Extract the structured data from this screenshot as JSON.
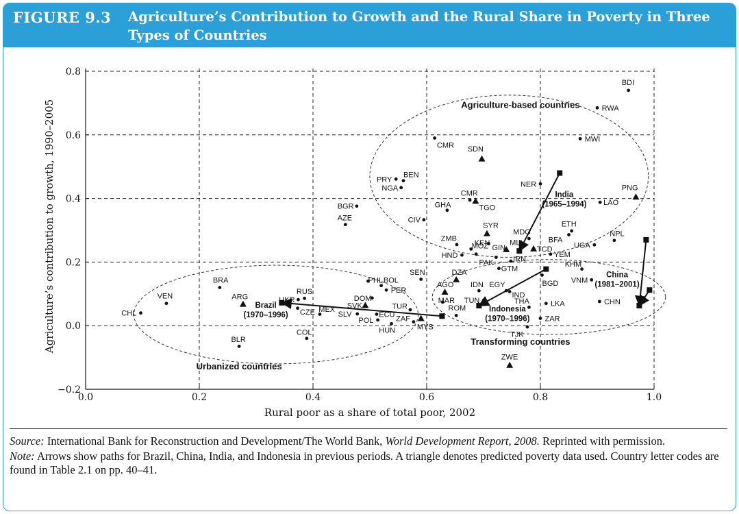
{
  "figure": {
    "number": "FIGURE 9.3",
    "title": "Agriculture’s Contribution to Growth and the Rural Share in Poverty in Three Types of Countries"
  },
  "colors": {
    "header": "#2b9fd8",
    "text": "#111111",
    "grid": "#222222"
  },
  "caption": {
    "source_lead": "Source:",
    "source_text": " International Bank for Reconstruction and Development/The World Bank, ",
    "source_italic": "World Development Report, 2008.",
    "source_tail": " Reprinted with permission.",
    "note_lead": "Note:",
    "note_text": " Arrows show paths for Brazil, China, India, and Indonesia in previous periods. A triangle denotes predicted poverty data used. Country letter codes are found in Table 2.1 on pp. 40–41."
  },
  "chart_data": {
    "type": "scatter",
    "xlabel": "Rural poor as a share of total poor, 2002",
    "ylabel": "Agriculture’s contribution to growth, 1990–2005",
    "xlim": [
      0.0,
      1.0
    ],
    "ylim": [
      -0.2,
      0.8
    ],
    "xticks": [
      0.0,
      0.2,
      0.4,
      0.6,
      0.8,
      1.0
    ],
    "xtick_labels": [
      "0.0",
      "0.2",
      "0.4",
      "0.6",
      "0.8",
      "1.0"
    ],
    "yticks": [
      -0.2,
      0.0,
      0.2,
      0.4,
      0.6,
      0.8
    ],
    "ytick_labels": [
      "−0.2",
      "0.0",
      "0.2",
      "0.4",
      "0.6",
      "0.8"
    ],
    "grid": "dashed",
    "points": [
      {
        "label": "BDI",
        "x": 0.955,
        "y": 0.74,
        "marker": "dot",
        "lx": -0.012,
        "ly": 0.025
      },
      {
        "label": "RWA",
        "x": 0.9,
        "y": 0.685,
        "marker": "dot",
        "lx": 0.008,
        "ly": 0.0
      },
      {
        "label": "MWI",
        "x": 0.87,
        "y": 0.588,
        "marker": "dot",
        "lx": 0.008,
        "ly": 0.0
      },
      {
        "label": "CMR",
        "x": 0.614,
        "y": 0.59,
        "marker": "dot",
        "lx": 0.004,
        "ly": -0.022
      },
      {
        "label": "SDN",
        "x": 0.697,
        "y": 0.525,
        "marker": "triangle",
        "lx": -0.025,
        "ly": 0.032
      },
      {
        "label": "BEN",
        "x": 0.559,
        "y": 0.456,
        "marker": "dot",
        "lx": 0.0,
        "ly": 0.02
      },
      {
        "label": "PRY",
        "x": 0.546,
        "y": 0.461,
        "marker": "dot",
        "lx": -0.034,
        "ly": 0.0
      },
      {
        "label": "NGA",
        "x": 0.555,
        "y": 0.434,
        "marker": "dot",
        "lx": -0.034,
        "ly": 0.0
      },
      {
        "label": "NER",
        "x": 0.8,
        "y": 0.446,
        "marker": "dot",
        "lx": -0.035,
        "ly": 0.0
      },
      {
        "label": "PNG",
        "x": 0.968,
        "y": 0.405,
        "marker": "triangle",
        "lx": -0.025,
        "ly": 0.03
      },
      {
        "label": "CMR",
        "x": 0.676,
        "y": 0.395,
        "marker": "dot",
        "lx": -0.016,
        "ly": 0.022
      },
      {
        "label": "TGO",
        "x": 0.686,
        "y": 0.392,
        "marker": "triangle",
        "lx": 0.006,
        "ly": -0.02
      },
      {
        "label": "GHA",
        "x": 0.636,
        "y": 0.363,
        "marker": "dot",
        "lx": -0.022,
        "ly": 0.018
      },
      {
        "label": "LAO",
        "x": 0.905,
        "y": 0.388,
        "marker": "dot",
        "lx": 0.006,
        "ly": 0.0
      },
      {
        "label": "BGR",
        "x": 0.477,
        "y": 0.376,
        "marker": "dot",
        "lx": -0.034,
        "ly": 0.0
      },
      {
        "label": "AZE",
        "x": 0.457,
        "y": 0.318,
        "marker": "dot",
        "lx": -0.014,
        "ly": 0.022
      },
      {
        "label": "CIV",
        "x": 0.595,
        "y": 0.333,
        "marker": "dot",
        "lx": -0.028,
        "ly": 0.0
      },
      {
        "label": "SYR",
        "x": 0.706,
        "y": 0.29,
        "marker": "triangle",
        "lx": -0.007,
        "ly": 0.026
      },
      {
        "label": "ETH",
        "x": 0.855,
        "y": 0.298,
        "marker": "dot",
        "lx": -0.018,
        "ly": 0.022
      },
      {
        "label": "MDG",
        "x": 0.78,
        "y": 0.274,
        "marker": "dot",
        "lx": -0.028,
        "ly": 0.022
      },
      {
        "label": "BFA",
        "x": 0.85,
        "y": 0.286,
        "marker": "dot",
        "lx": -0.036,
        "ly": -0.015
      },
      {
        "label": "NPL",
        "x": 0.93,
        "y": 0.268,
        "marker": "dot",
        "lx": -0.008,
        "ly": 0.022
      },
      {
        "label": "ZMB",
        "x": 0.653,
        "y": 0.255,
        "marker": "dot",
        "lx": -0.028,
        "ly": 0.02
      },
      {
        "label": "KEN",
        "x": 0.678,
        "y": 0.241,
        "marker": "dot",
        "lx": 0.006,
        "ly": 0.02
      },
      {
        "label": "GIN",
        "x": 0.709,
        "y": 0.258,
        "marker": "dot",
        "lx": 0.006,
        "ly": -0.012
      },
      {
        "label": "MLI",
        "x": 0.74,
        "y": 0.24,
        "marker": "triangle",
        "lx": 0.006,
        "ly": 0.022
      },
      {
        "label": "TCD",
        "x": 0.788,
        "y": 0.242,
        "marker": "triangle",
        "lx": 0.006,
        "ly": 0.0
      },
      {
        "label": "UGA",
        "x": 0.895,
        "y": 0.254,
        "marker": "dot",
        "lx": -0.036,
        "ly": 0.0
      },
      {
        "label": "MOZ",
        "x": 0.687,
        "y": 0.225,
        "marker": "dot",
        "lx": -0.008,
        "ly": 0.026
      },
      {
        "label": "HND",
        "x": 0.662,
        "y": 0.222,
        "marker": "dot",
        "lx": -0.036,
        "ly": 0.0
      },
      {
        "label": "PAK",
        "x": 0.722,
        "y": 0.215,
        "marker": "dot",
        "lx": -0.03,
        "ly": -0.015
      },
      {
        "label": "YEM",
        "x": 0.818,
        "y": 0.225,
        "marker": "dot",
        "lx": 0.006,
        "ly": 0.0
      },
      {
        "label": "IRN",
        "x": 0.748,
        "y": 0.203,
        "marker": "dot",
        "lx": 0.004,
        "ly": 0.008
      },
      {
        "label": "KHM",
        "x": 0.873,
        "y": 0.178,
        "marker": "dot",
        "lx": -0.03,
        "ly": 0.016
      },
      {
        "label": "GTM",
        "x": 0.727,
        "y": 0.18,
        "marker": "dot",
        "lx": 0.004,
        "ly": 0.0
      },
      {
        "label": "DZA",
        "x": 0.652,
        "y": 0.145,
        "marker": "triangle",
        "lx": -0.008,
        "ly": 0.024
      },
      {
        "label": "BGD",
        "x": 0.803,
        "y": 0.159,
        "marker": "dot",
        "lx": 0.0,
        "ly": -0.025
      },
      {
        "label": "VNM",
        "x": 0.89,
        "y": 0.144,
        "marker": "dot",
        "lx": -0.036,
        "ly": 0.0
      },
      {
        "label": "SEN",
        "x": 0.59,
        "y": 0.146,
        "marker": "dot",
        "lx": -0.02,
        "ly": 0.022
      },
      {
        "label": "PHL",
        "x": 0.497,
        "y": 0.14,
        "marker": "dot",
        "lx": 0.0,
        "ly": 0.004
      },
      {
        "label": "BOL",
        "x": 0.52,
        "y": 0.126,
        "marker": "dot",
        "lx": 0.004,
        "ly": 0.018
      },
      {
        "label": "PER",
        "x": 0.529,
        "y": 0.112,
        "marker": "dot",
        "lx": 0.008,
        "ly": 0.0
      },
      {
        "label": "IDN",
        "x": 0.692,
        "y": 0.11,
        "marker": "dot",
        "lx": -0.015,
        "ly": 0.02
      },
      {
        "label": "EGY",
        "x": 0.74,
        "y": 0.11,
        "marker": "dot",
        "lx": -0.03,
        "ly": 0.02
      },
      {
        "label": "IND",
        "x": 0.746,
        "y": 0.107,
        "marker": "dot",
        "lx": 0.004,
        "ly": -0.01
      },
      {
        "label": "AGO",
        "x": 0.632,
        "y": 0.106,
        "marker": "triangle",
        "lx": -0.014,
        "ly": 0.024
      },
      {
        "label": "BRA",
        "x": 0.236,
        "y": 0.12,
        "marker": "dot",
        "lx": -0.012,
        "ly": 0.024
      },
      {
        "label": "RUS",
        "x": 0.385,
        "y": 0.086,
        "marker": "dot",
        "lx": -0.014,
        "ly": 0.022
      },
      {
        "label": "UKR",
        "x": 0.374,
        "y": 0.082,
        "marker": "dot",
        "lx": -0.034,
        "ly": 0.0
      },
      {
        "label": "DOM",
        "x": 0.504,
        "y": 0.087,
        "marker": "dot",
        "lx": -0.032,
        "ly": 0.0
      },
      {
        "label": "MAR",
        "x": 0.628,
        "y": 0.074,
        "marker": "dot",
        "lx": -0.008,
        "ly": 0.006
      },
      {
        "label": "TUN",
        "x": 0.7,
        "y": 0.08,
        "marker": "dot",
        "lx": -0.034,
        "ly": 0.0
      },
      {
        "label": "THA",
        "x": 0.78,
        "y": 0.058,
        "marker": "dot",
        "lx": -0.026,
        "ly": 0.02
      },
      {
        "label": "LKA",
        "x": 0.81,
        "y": 0.07,
        "marker": "dot",
        "lx": 0.008,
        "ly": 0.0
      },
      {
        "label": "CHN",
        "x": 0.904,
        "y": 0.076,
        "marker": "dot",
        "lx": 0.008,
        "ly": 0.0
      },
      {
        "label": "VEN",
        "x": 0.142,
        "y": 0.07,
        "marker": "dot",
        "lx": -0.016,
        "ly": 0.024
      },
      {
        "label": "ARG",
        "x": 0.277,
        "y": 0.068,
        "marker": "triangle",
        "lx": -0.02,
        "ly": 0.024
      },
      {
        "label": "SVK",
        "x": 0.492,
        "y": 0.064,
        "marker": "triangle",
        "lx": -0.032,
        "ly": 0.0
      },
      {
        "label": "CZE",
        "x": 0.373,
        "y": 0.055,
        "marker": "dot",
        "lx": 0.004,
        "ly": -0.012
      },
      {
        "label": "MEX",
        "x": 0.412,
        "y": 0.036,
        "marker": "dot",
        "lx": -0.002,
        "ly": 0.016
      },
      {
        "label": "TUR",
        "x": 0.571,
        "y": 0.05,
        "marker": "dot",
        "lx": -0.032,
        "ly": 0.012
      },
      {
        "label": "ROM",
        "x": 0.652,
        "y": 0.032,
        "marker": "dot",
        "lx": -0.014,
        "ly": 0.024
      },
      {
        "label": "SLV",
        "x": 0.478,
        "y": 0.037,
        "marker": "dot",
        "lx": -0.034,
        "ly": 0.0
      },
      {
        "label": "ECU",
        "x": 0.512,
        "y": 0.036,
        "marker": "dot",
        "lx": 0.004,
        "ly": 0.0
      },
      {
        "label": "POL",
        "x": 0.514,
        "y": 0.018,
        "marker": "dot",
        "lx": -0.034,
        "ly": 0.0
      },
      {
        "label": "ZAF",
        "x": 0.59,
        "y": 0.023,
        "marker": "triangle",
        "lx": -0.044,
        "ly": 0.0
      },
      {
        "label": "MYS",
        "x": 0.577,
        "y": 0.012,
        "marker": "dot",
        "lx": 0.006,
        "ly": -0.015
      },
      {
        "label": "HUN",
        "x": 0.538,
        "y": 0.006,
        "marker": "dot",
        "lx": -0.022,
        "ly": -0.02
      },
      {
        "label": "ZAR",
        "x": 0.8,
        "y": 0.023,
        "marker": "dot",
        "lx": 0.008,
        "ly": 0.0
      },
      {
        "label": "TJK",
        "x": 0.777,
        "y": -0.004,
        "marker": "dot",
        "lx": -0.03,
        "ly": -0.022
      },
      {
        "label": "CHL",
        "x": 0.097,
        "y": 0.04,
        "marker": "dot",
        "lx": -0.034,
        "ly": 0.0
      },
      {
        "label": "COL",
        "x": 0.389,
        "y": -0.04,
        "marker": "dot",
        "lx": -0.018,
        "ly": 0.02
      },
      {
        "label": "BLR",
        "x": 0.27,
        "y": -0.065,
        "marker": "dot",
        "lx": -0.014,
        "ly": 0.022
      },
      {
        "label": "ZWE",
        "x": 0.746,
        "y": -0.124,
        "marker": "triangle",
        "lx": -0.015,
        "ly": 0.026
      }
    ],
    "paths": [
      {
        "name": "India",
        "from": [
          0.834,
          0.48
        ],
        "to": [
          0.763,
          0.235
        ],
        "label": "India",
        "period": "(1965–1994)"
      },
      {
        "name": "Indonesia",
        "from": [
          0.81,
          0.178
        ],
        "to": [
          0.692,
          0.063
        ],
        "label": "Indonesia",
        "period": "(1970–1996)"
      },
      {
        "name": "Brazil",
        "from": [
          0.627,
          0.03
        ],
        "to": [
          0.345,
          0.072
        ],
        "label": "Brazil",
        "period": "(1970–1996)"
      },
      {
        "name": "China",
        "from": [
          0.986,
          0.27
        ],
        "to": [
          0.974,
          0.063
        ],
        "label": "China",
        "period": "(1981–2001)"
      },
      {
        "name": "China",
        "from": [
          0.992,
          0.112
        ],
        "to": [
          0.974,
          0.063
        ],
        "label": "",
        "period": ""
      }
    ],
    "groups": [
      {
        "label": "Agriculture-based countries",
        "cx": 0.745,
        "cy": 0.47,
        "rx": 0.245,
        "ry": 0.255,
        "lx": 0.765,
        "ly": 0.685
      },
      {
        "label": "Transforming countries",
        "cx": 0.815,
        "cy": 0.09,
        "rx": 0.205,
        "ry": 0.118,
        "lx": 0.765,
        "ly": -0.06
      },
      {
        "label": "Urbanized countries",
        "cx": 0.335,
        "cy": 0.035,
        "rx": 0.25,
        "ry": 0.155,
        "lx": 0.27,
        "ly": -0.138
      }
    ]
  }
}
